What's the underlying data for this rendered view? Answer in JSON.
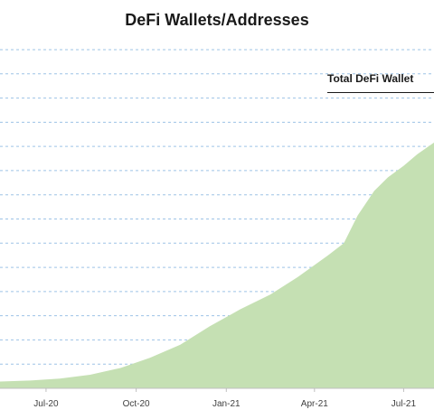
{
  "chart_data": {
    "type": "area",
    "title": "DeFi Wallets/Addresses",
    "series": [
      {
        "name": "Total DeFi Wallet",
        "color": "#c5e0b3",
        "x": [
          "2020-05-15",
          "2020-06-15",
          "2020-07-15",
          "2020-08-15",
          "2020-09-15",
          "2020-10-15",
          "2020-11-15",
          "2020-12-15",
          "2021-01-15",
          "2021-02-15",
          "2021-03-15",
          "2021-04-15",
          "2021-05-01",
          "2021-05-15",
          "2021-06-01",
          "2021-06-15",
          "2021-07-01",
          "2021-07-15",
          "2021-08-01"
        ],
        "values": [
          0.14,
          0.16,
          0.2,
          0.28,
          0.42,
          0.63,
          0.9,
          1.28,
          1.63,
          1.94,
          2.3,
          2.75,
          3.0,
          3.57,
          4.08,
          4.36,
          4.6,
          4.84,
          5.08
        ]
      }
    ],
    "x_tick_labels": [
      "Jul-20",
      "Oct-20",
      "Jan-21",
      "Apr-21",
      "Jul-21"
    ],
    "x_tick_dates": [
      "2020-07-01",
      "2020-10-01",
      "2021-01-01",
      "2021-04-01",
      "2021-07-01"
    ],
    "xlim": [
      "2020-05-15",
      "2021-08-01"
    ],
    "ylim": [
      0,
      7
    ],
    "grid": true,
    "legend_position": "top-right"
  }
}
